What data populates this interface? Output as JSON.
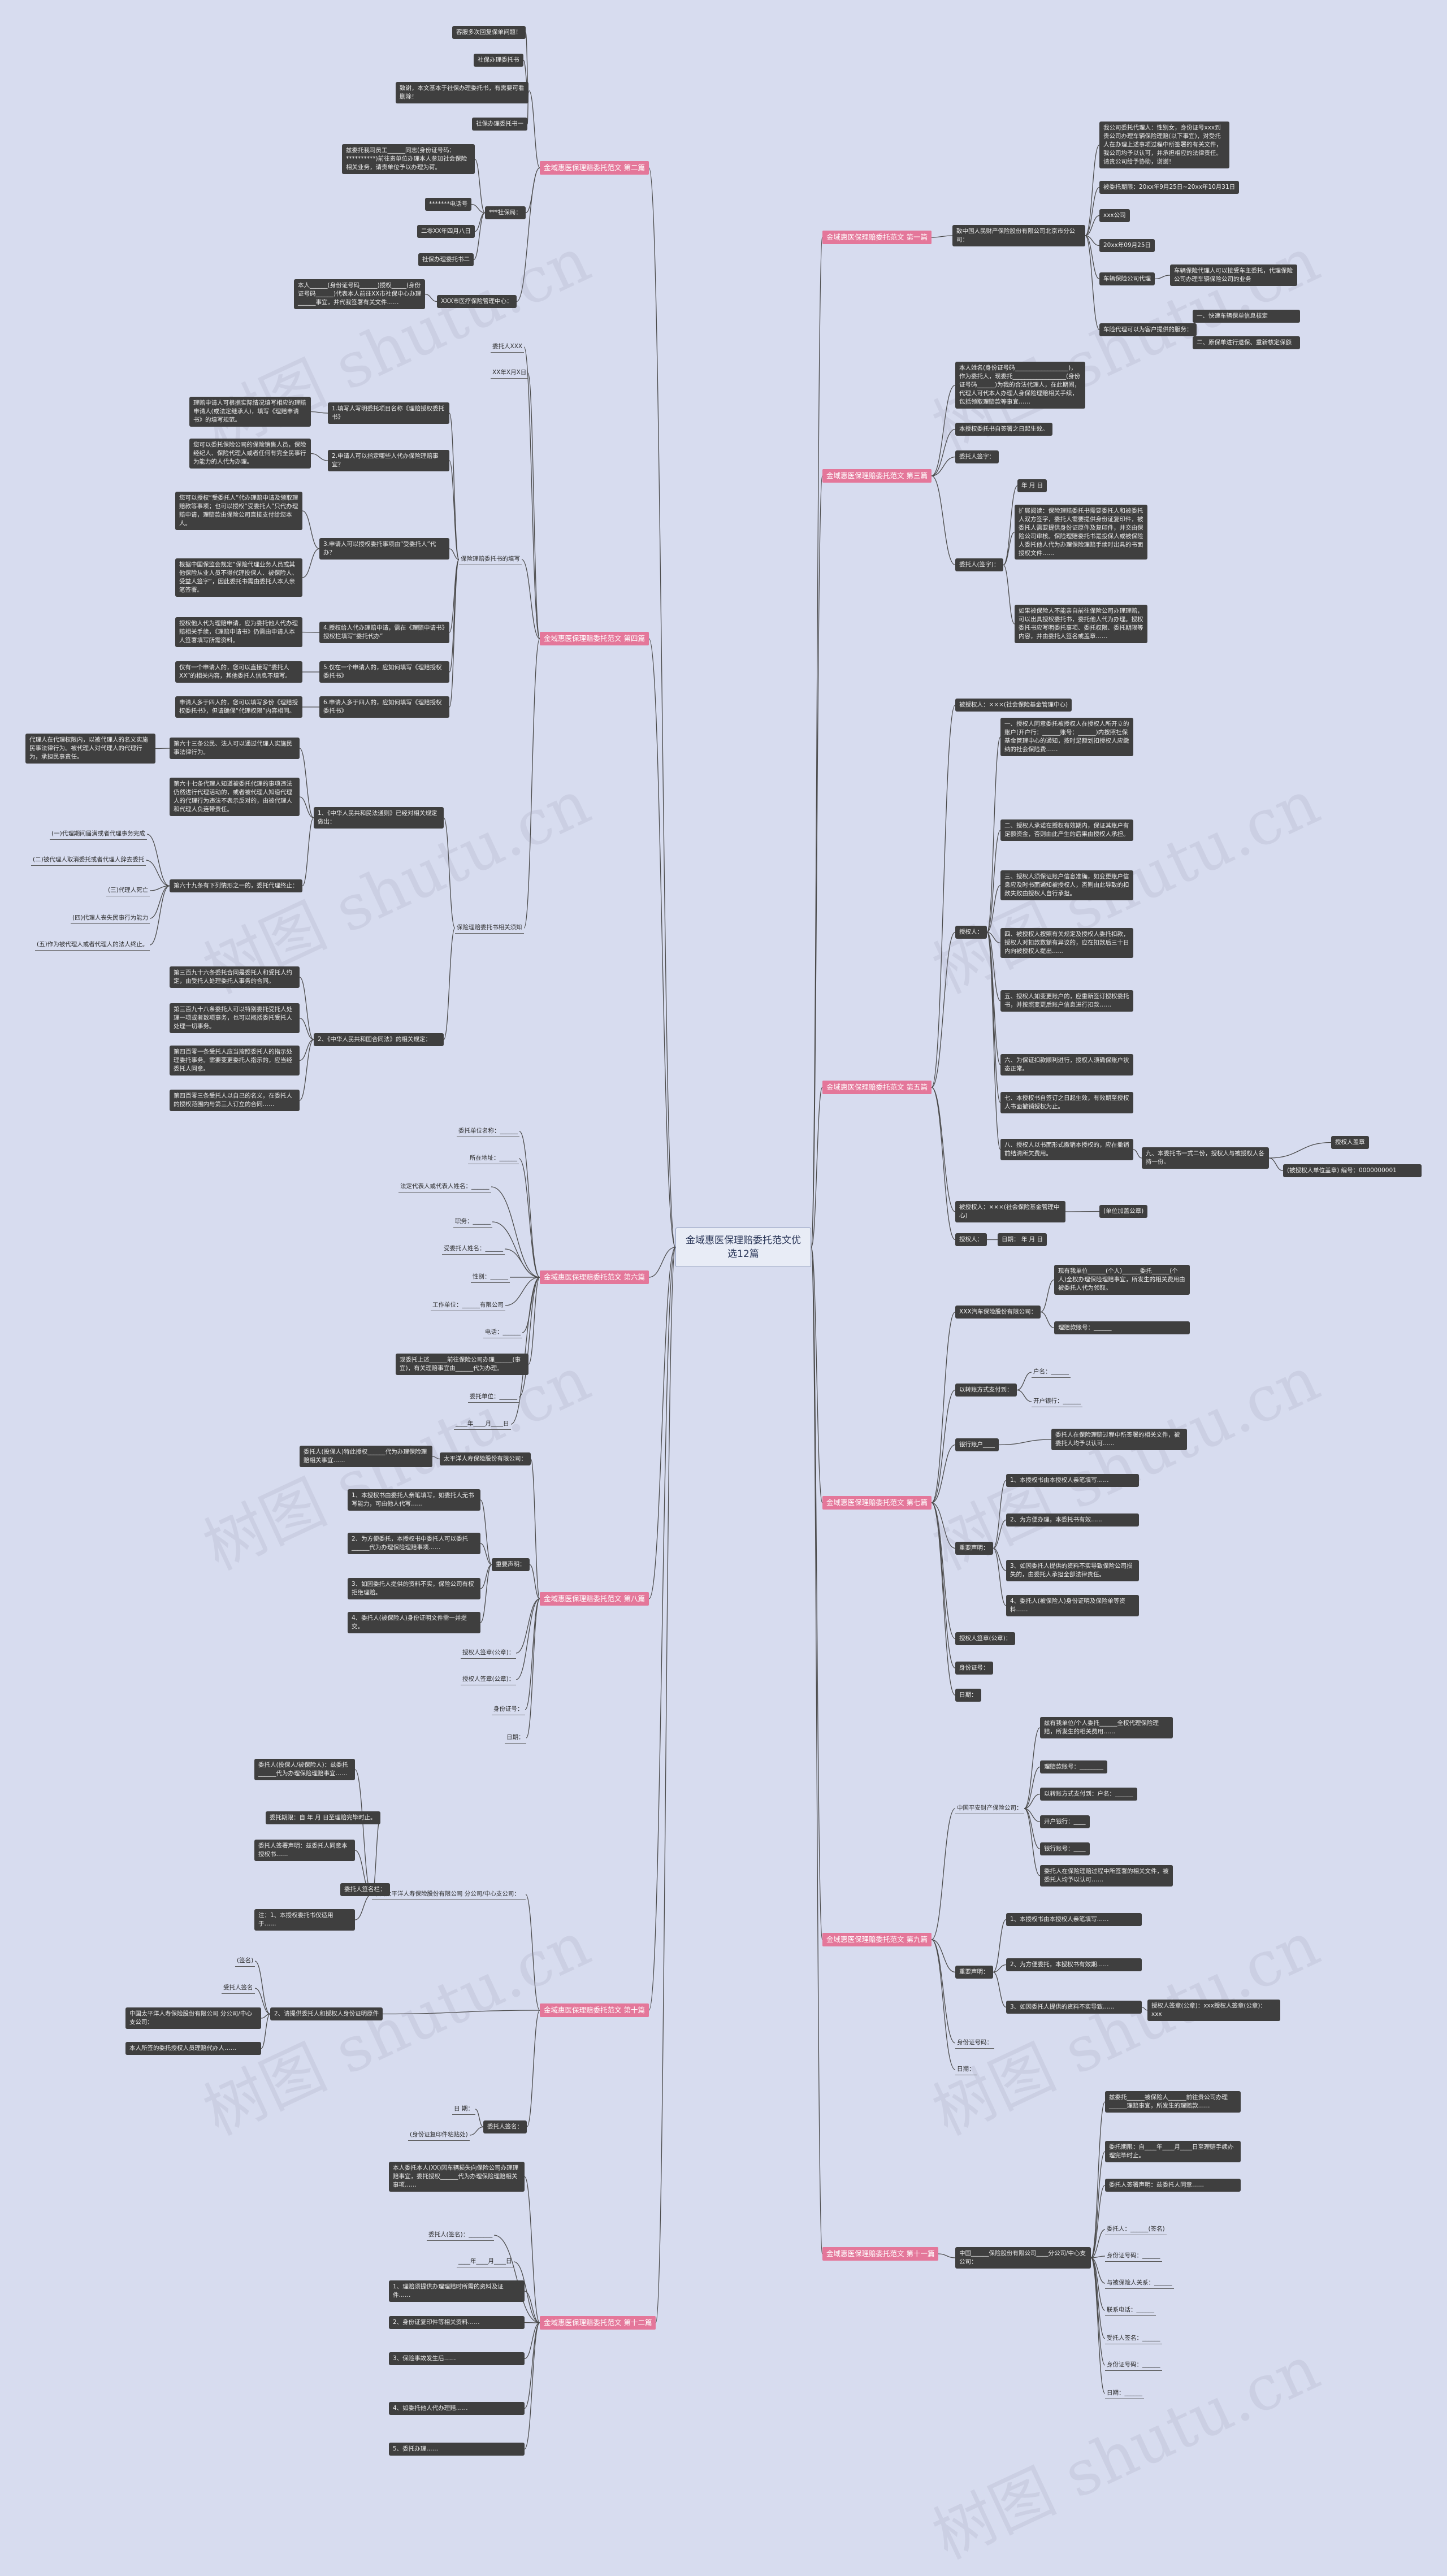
{
  "watermark": "树图 shutu.cn",
  "root": "金域惠医保理赔委托范文优选12篇",
  "branches": [
    {
      "id": "b1",
      "label": "金域惠医保理赔委托范文 第一篇"
    },
    {
      "id": "b2",
      "label": "金域惠医保理赔委托范文 第二篇"
    },
    {
      "id": "b3",
      "label": "金域惠医保理赔委托范文 第三篇"
    },
    {
      "id": "b4",
      "label": "金域惠医保理赔委托范文 第四篇"
    },
    {
      "id": "b5",
      "label": "金域惠医保理赔委托范文 第五篇"
    },
    {
      "id": "b6",
      "label": "金域惠医保理赔委托范文 第六篇"
    },
    {
      "id": "b7",
      "label": "金域惠医保理赔委托范文 第七篇"
    },
    {
      "id": "b8",
      "label": "金域惠医保理赔委托范文 第八篇"
    },
    {
      "id": "b9",
      "label": "金域惠医保理赔委托范文 第九篇"
    },
    {
      "id": "b10",
      "label": "金域惠医保理赔委托范文 第十篇"
    },
    {
      "id": "b11",
      "label": "金域惠医保理赔委托范文 第十一篇"
    },
    {
      "id": "b12",
      "label": "金域惠医保理赔委托范文 第十二篇"
    }
  ],
  "nodes": {
    "b1_main": "致中国人民财产保险股份有限公司北京市分公司：",
    "b1_intro": "我公司委托代理人：性别女，身份证号xxx到贵公司办理车辆保险理赔(以下事宜)，对受托人在办理上述事项过程中所签署的有关文件，我公司均予以认可，并承担相应的法律责任。请贵公司给予协助，谢谢！",
    "b1_date1": "被委托期限：20xx年9月25日~20xx年10月31日",
    "b1_co": "xxx公司",
    "b1_date2": "20xx年09月25日",
    "b1_proxy": "车辆保险公司代理",
    "b1_proxy_desc": "车辆保险代理人可以接受车主委托，代理保险公司办理车辆保险公司的业务",
    "b1_assign": "车险代理可以为客户提供的服务：",
    "b1_svc1": "保险代办、理赔代理是车险代理人的基本业务，车险代理公司汇集各家保险公司的各种车险产品，能为客户提供最合适的车险代理服务",
    "b1_svc2": "一、快速车辆保单信息核定",
    "b1_svc3": "二、原保单进行退保、重新核定保额",
    "b2_1": "客服多次回复保单问题！",
    "b2_2": "社保办理委托书",
    "b2_3": "致谢，本文基本于社保办理委托书，有需要可看删除！",
    "b2_4": "社保办理委托书一",
    "b2_5": "兹委托我司员工______同志(身份证号码：**********)前往贵单位办理本人参加社会保险相关业务，请贵单位予以办理为荷。",
    "b2_6": "*******电话号",
    "b2_7": "***社保局：",
    "b2_8": "二零XX年四月八日",
    "b2_9": "社保办理委托书二",
    "b2_10": "本人______(身份证号码______)授权_____(身份证号码______)代表本人前往XX市社保中心办理______事宜，并代我签署有关文件……",
    "b2_11": "XXX市医疗保险管理中心：",
    "b3_a": "本人姓名(身份证号码__________________)，作为委托人，现委托__________________(身份证号码______)为我的合法代理人，在此期间，代理人可代本人办理人身保险理赔相关手续，包括领取理赔款等事宜……",
    "b3_b": "本授权委托书自签署之日起生效。",
    "b3_c": "委托人签字：",
    "b3_d": "年 月 日",
    "b3_e": "委托人(签字)：",
    "b3_f": "扩展阅读：保险理赔委托书需要委托人和被委托人双方签字，委托人需要提供身份证复印件，被委托人需要提供身份证原件及复印件，并交由保险公司审核。保险理赔委托书是投保人或被保险人委托他人代为办理保险理赔手续时出具的书面授权文件……",
    "b3_g": "如果被保险人不能亲自前往保险公司办理理赔，可以出具授权委托书，委托他人代为办理。授权委托书应写明委托事项、委托权限、委托期限等内容，并由委托人签名或盖章……",
    "b4_top1": "委托人XXX",
    "b4_top2": "XX年X月X日",
    "b4_g1": "保险理赔委托书的填写",
    "b4_q1": "1.填写人写明委托项目名称《理赔授权委托书》",
    "b4_q1d": "理赔申请人可根据实际情况填写相应的理赔申请人(或法定继承人)，填写《理赔申请书》的填写规范。",
    "b4_q2": "2.申请人可以指定哪些人代办保险理赔事宜？",
    "b4_q2d": "您可以委托保险公司的保险销售人员，保险经纪人、保险代理人或者任何有完全民事行为能力的人代为办理。",
    "b4_q3": "3.申请人可以授权委托事项由“受委托人”代办？",
    "b4_q3d1": "您可以授权“受委托人”代办理赔申请及领取理赔款等事项；也可以授权“受委托人”只代办理赔申请，理赔款由保险公司直接支付给您本人。",
    "b4_q3d2": "根据中国保监会规定“保险代理业务人员或其他保险从业人员不得代理投保人、被保险人、受益人签字”，因此委托书需由委托人本人亲笔签署。",
    "b4_q4": "4.授权给人代办理赔申请，需在《理赔申请书》授权栏填写“委托代办”",
    "b4_q4d": "授权他人代为理赔申请，应为委托他人代办理赔相关手续，《理赔申请书》仍需由申请人本人签署填写所需资料。",
    "b4_q5": "5.仅在一个申请人的，应如何填写《理赔授权委托书》",
    "b4_q5d": "仅有一个申请人的，您可以直接写“委托人XX”的相关内容，其他委托人信息不填写。",
    "b4_q6": "6.申请人多于四人的，应如何填写《理赔授权委托书》",
    "b4_q6d": "申请人多于四人的，您可以填写多份《理赔授权委托书》，但请确保“代理权限”内容相同。",
    "b4_g2": "保险理赔委托书相关须知",
    "b4_l1": "1、《中华人民共和民法通则》已经对相关规定做出：",
    "b4_l2": "2、《中华人民共和国合同法》的相关规定：",
    "b4_a1": "第六十三条公民、法人可以通过代理人实施民事法律行为。",
    "b4_a1d": "代理人在代理权限内，以被代理人的名义实施民事法律行为。被代理人对代理人的代理行为，承担民事责任。",
    "b4_a2": "第六十七条代理人知道被委托代理的事项违法仍然进行代理活动的，或者被代理人知道代理人的代理行为违法不表示反对的，由被代理人和代理人负连带责任。",
    "b4_a3": "第六十九条有下列情形之一的，委托代理终止：",
    "b4_a3d1": "(一)代理期间届满或者代理事务完成",
    "b4_a3d2": "(二)被代理人取消委托或者代理人辞去委托",
    "b4_a3d3": "(三)代理人死亡",
    "b4_a3d4": "(四)代理人丧失民事行为能力",
    "b4_a3d5": "(五)作为被代理人或者代理人的法人终止。",
    "b4_c1": "第三百九十六条委托合同是委托人和受托人约定，由受托人处理委托人事务的合同。",
    "b4_c2": "第三百九十八条委托人可以特别委托受托人处理一项或者数项事务，也可以概括委托受托人处理一切事务。",
    "b4_c3": "第四百零一条受托人应当按照委托人的指示处理委托事务。需要变更委托人指示的，应当经委托人同意。",
    "b4_c4": "第四百零三条受托人以自己的名义，在委托人的授权范围内与第三人订立的合同……",
    "b5_1": "被授权人：×××(社会保险基金管理中心)",
    "b5_auth": "授权人：",
    "b5_t1": "一、授权人同意委托被授权人在授权人所开立的账户(开户行：______账号：______)内按照社保基金管理中心的通知，按时足额划扣授权人应缴纳的社会保险费……",
    "b5_t2": "二、授权人承诺在授权有效期内，保证其账户有足额资金，否则由此产生的后果由授权人承担。",
    "b5_t3": "三、授权人须保证账户信息准确，如变更账户信息应及时书面通知被授权人，否则由此导致的扣款失败由授权人自行承担。",
    "b5_t4": "四、被授权人按照有关规定及授权人委托扣款，授权人对扣款数额有异议的，应在扣款后三十日内向被授权人提出……",
    "b5_t5": "五、授权人如变更账户的，应重新签订授权委托书，并按照变更后账户信息进行扣款……",
    "b5_t6": "六、为保证扣款顺利进行，授权人须确保账户状态正常。",
    "b5_t7": "七、本授权书自签订之日起生效，有效期至授权人书面撤销授权为止。",
    "b5_t8": "八、授权人以书面形式撤销本授权的，应在撤销前结清所欠费用。",
    "b5_t9": "九、本委托书一式二份，授权人与被授权人各持一份。",
    "b5_t9a": "授权人盖章",
    "b5_t9b": "(被授权人单位盖章) 编号：0000000001",
    "b5_2": "被授权人：×××(社会保险基金管理中心)",
    "b5_3": "授权人：",
    "b5_4": "(单位加盖公章)",
    "b5_5": "日期：  年 月 日",
    "b6_l1": "委托单位名称：______",
    "b6_l2": "所在地址：______",
    "b6_l3": "法定代表人或代表人姓名：______",
    "b6_l4": "职务：______",
    "b6_l5": "受委托人姓名：______",
    "b6_l6": "性别：______",
    "b6_l7": "工作单位：______有限公司",
    "b6_l8": "电话：______",
    "b6_l9": "现委托上述______前往保险公司办理______(事宜)，有关理赔事宜由______代为办理。",
    "b6_l10": "委托单位：______",
    "b6_l11": "____年____月____日",
    "b7_a": "XXX汽车保险股份有限公司：",
    "b7_a1": "现有我单位______(个人)______委托______(个人)全权办理保险理赔事宜，所发生的相关费用由被委托人代为领取。",
    "b7_a2": "理赔款账号：______",
    "b7_b": "以转账方式支付到：",
    "b7_b1": "户名：______",
    "b7_b2": "开户银行：______",
    "b7_c": "银行账户____",
    "b7_c1": "委托人在保险理赔过程中所签署的相关文件，被委托人均予以认可……",
    "b7_d": "重要声明：",
    "b7_d1": "1、本授权书由本授权人亲笔填写……",
    "b7_d2": "2、为方便办理，本委托书有效……",
    "b7_d3": "3、如因委托人提供的资料不实导致保险公司损失的，由委托人承担全部法律责任。",
    "b7_d4": "4、委托人(被保险人)身份证明及保险单等资料……",
    "b7_e": "授权人签章(公章)：",
    "b7_f": "身份证号：",
    "b7_g": "日期：",
    "b8_a": "太平洋人寿保险股份有限公司：",
    "b8_a1": "委托人(投保人)特此授权______代为办理保险理赔相关事宜……",
    "b8_b": "重要声明：",
    "b8_b1": "1、本授权书由委托人亲笔填写，如委托人无书写能力，可由他人代写……",
    "b8_b2": "2、为方便委托，本授权书中委托人可以委托______代为办理保险理赔事项……",
    "b8_b3": "3、如因委托人提供的资料不实，保险公司有权拒绝理赔。",
    "b8_b4": "4、委托人(被保险人)身份证明文件需一并提交。",
    "b8_c": "授权人签章(公章)：",
    "b8_d": "授权人签章(公章)：",
    "b8_e": "身份证号：",
    "b8_f": "日期：",
    "b9_a": "中国平安财产保险公司：",
    "b9_a1": "兹有我单位/个人委托______全权代理保险理赔，所发生的相关费用……",
    "b9_a2": "理赔款账号：________",
    "b9_a3": "以转账方式支付到：户名：______",
    "b9_a4": "开户银行：____",
    "b9_a5": "银行账号：____",
    "b9_a6": "委托人在保险理赔过程中所签署的相关文件，被委托人均予以认可……",
    "b9_b": "重要声明：",
    "b9_b1": "1、本授权书由本授权人亲笔填写……",
    "b9_b2": "2、为方便委托，本授权书有效期……",
    "b9_b3": "3、如因委托人提供的资料不实导致……",
    "b9_b3a": "授权人签章(公章)：xxx授权人签章(公章)：xxx",
    "b9_c": "身份证号码：",
    "b9_d": "日期：",
    "b10_a": "中国太平洋人寿保险股份有限公司 分公司/中心支公司：",
    "b10_a1": "委托人(投保人/被保险人)：兹委托______代为办理保险理赔事宜……",
    "b10_a2": "委托期限：自 年 月 日至理赔完毕时止。",
    "b10_a3": "委托人签署声明：兹委托人同意本授权书……",
    "b10_a4": "委托人签名栏：",
    "b10_a5": "注：1、本授权委托书仅适用于……",
    "b10_b": "2、请提供委托人和授权人身份证明原件",
    "b10_b1": "(签名)",
    "b10_b2": "受托人签名",
    "b10_b3": "中国太平洋人寿保险股份有限公司 分公司/中心支公司：",
    "b10_b4": "本人所签的委托授权人员理赔代办人……",
    "b10_c": "委托人签名：",
    "b10_c1": "日 期：",
    "b10_c2": "(身份证复印件粘贴处)",
    "b11_a": "中国______保险股份有限公司____分公司/中心支公司：",
    "b11_a1": "兹委托______被保险人______前往贵公司办理______理赔事宜，所发生的理赔款……",
    "b11_a2": "委托期限：自____年____月____日至理赔手续办理完毕时止。",
    "b11_a3": "委托人签署声明：兹委托人同意……",
    "b11_a4": "委托人：______(签名)",
    "b11_a5": "身份证号码：______",
    "b11_a6": "与被保险人关系：______",
    "b11_a7": "联系电话：______",
    "b11_a8": "受托人签名：______",
    "b11_a9": "身份证号码：______",
    "b11_a10": "日期：______",
    "b12_a": "本人委托本人(XX)因车辆损失向保险公司办理理赔事宜，委托授权______代为办理保险理赔相关事项……",
    "b12_b": "委托人(签名)：________",
    "b12_c": "____年____月____日",
    "b12_d": "1、理赔须提供办理理赔时所需的资料及证件……",
    "b12_e": "2、身份证复印件等相关资料……",
    "b12_f": "3、保险事故发生后……",
    "b12_g": "4、如委托他人代办理赔……",
    "b12_h": "5、委托办理……"
  }
}
